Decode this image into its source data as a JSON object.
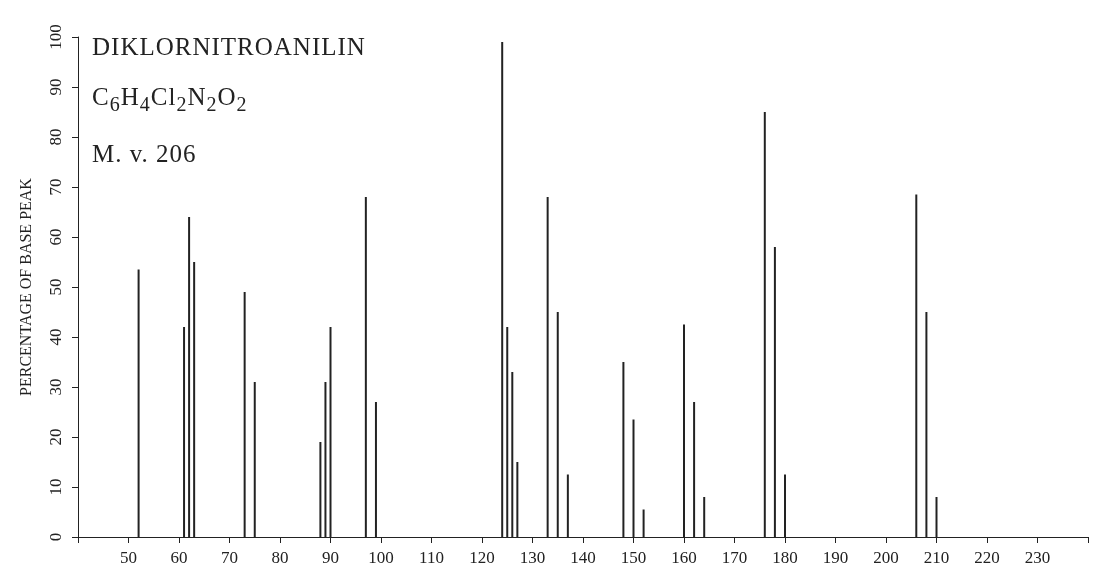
{
  "chart_data": {
    "type": "bar",
    "title": "DIKLORNITROANILIN",
    "subtitle": "C$_{6}$H$_{4}$Cl$_{2}$N$_{2}$O$_{2}$",
    "annotations": [
      "M. v.  206"
    ],
    "ylabel": "PERCENTAGE OF BASE PEAK",
    "x": [
      52,
      61,
      62,
      63,
      73,
      75,
      88,
      89,
      90,
      97,
      99,
      124,
      125,
      126,
      127,
      133,
      135,
      137,
      148,
      150,
      152,
      160,
      162,
      164,
      176,
      178,
      180,
      206,
      208,
      210
    ],
    "values": [
      53.5,
      42,
      64,
      55,
      49,
      31,
      19,
      31,
      42,
      68,
      27,
      99,
      42,
      33,
      15,
      68,
      45,
      12.5,
      35,
      23.5,
      5.5,
      42.5,
      27,
      8,
      85,
      58,
      12.5,
      68.5,
      45,
      8
    ],
    "color": "#222222",
    "xlim": [
      40,
      240
    ],
    "xticks": [
      {
        "value": 40,
        "label": null
      },
      50,
      60,
      70,
      80,
      90,
      100,
      110,
      120,
      130,
      140,
      150,
      160,
      170,
      180,
      190,
      200,
      210,
      220,
      230,
      {
        "value": 240,
        "label": null
      }
    ],
    "ylim": [
      0,
      100
    ],
    "yticks": [
      0,
      10,
      20,
      30,
      40,
      50,
      60,
      70,
      80,
      90,
      100
    ],
    "grid": false
  }
}
